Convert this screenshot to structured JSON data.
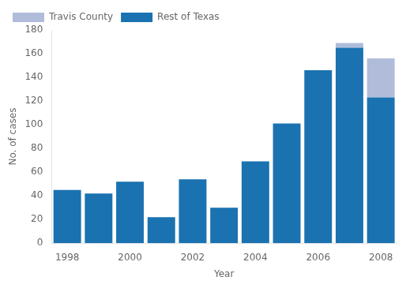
{
  "chart_data": {
    "type": "bar",
    "xlabel": "Year",
    "ylabel": "No. of cases",
    "categories": [
      "1998",
      null,
      "2000",
      null,
      "2002",
      null,
      "2004",
      null,
      "2006",
      null,
      "2008"
    ],
    "series": [
      {
        "name": "Rest of Texas",
        "color": "#1a72b0",
        "values": [
          45,
          42,
          52,
          22,
          54,
          30,
          69,
          101,
          146,
          165,
          123
        ]
      },
      {
        "name": "Travis County",
        "color": "#b0bcda",
        "values": [
          0,
          0,
          0,
          0,
          0,
          0,
          0,
          0,
          0,
          4,
          33
        ]
      }
    ],
    "stacked": true,
    "ylim": [
      0,
      180
    ],
    "yticks": [
      0,
      20,
      40,
      60,
      80,
      100,
      120,
      140,
      160,
      180
    ],
    "legend": "upper left",
    "grid": false
  }
}
